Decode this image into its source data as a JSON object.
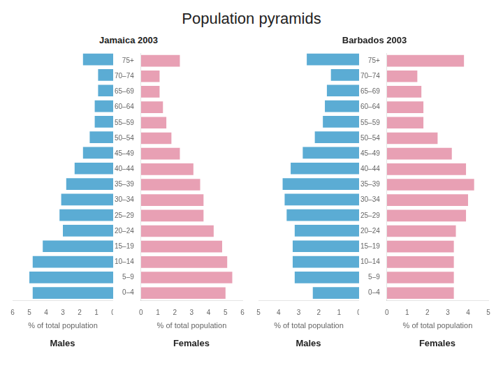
{
  "title": "Population pyramids",
  "chart_data": [
    {
      "type": "bar",
      "orientation": "horizontal",
      "title": "Jamaica 2003",
      "xlabel": "% of total population",
      "categories": [
        "0–4",
        "5–9",
        "10–14",
        "15–19",
        "20–24",
        "25–29",
        "30–34",
        "35–39",
        "40–44",
        "45–49",
        "50–54",
        "55–59",
        "60–64",
        "65–69",
        "70–74",
        "75+"
      ],
      "series": [
        {
          "name": "Males",
          "color": "#5bacd4",
          "values": [
            4.8,
            5.0,
            4.8,
            4.2,
            3.0,
            3.2,
            3.1,
            2.8,
            2.3,
            1.8,
            1.4,
            1.1,
            1.1,
            0.9,
            0.9,
            1.8
          ]
        },
        {
          "name": "Females",
          "color": "#e8a0b4",
          "values": [
            5.0,
            5.4,
            5.1,
            4.8,
            4.3,
            3.7,
            3.7,
            3.5,
            3.1,
            2.3,
            1.8,
            1.5,
            1.3,
            1.1,
            1.1,
            2.3
          ]
        }
      ],
      "xlim": [
        0,
        6
      ],
      "xticks": [
        0,
        1,
        2,
        3,
        4,
        5,
        6
      ],
      "grid": false
    },
    {
      "type": "bar",
      "orientation": "horizontal",
      "title": "Barbados 2003",
      "xlabel": "% of total population",
      "categories": [
        "0–4",
        "5–9",
        "10–14",
        "15–19",
        "20–24",
        "25–29",
        "30–34",
        "35–39",
        "40–44",
        "45–49",
        "50–54",
        "55–59",
        "60–64",
        "65–69",
        "70–74",
        "75+"
      ],
      "series": [
        {
          "name": "Males",
          "color": "#5bacd4",
          "values": [
            2.3,
            3.2,
            3.3,
            3.3,
            3.2,
            3.6,
            3.7,
            3.8,
            3.4,
            2.8,
            2.2,
            1.8,
            1.7,
            1.6,
            1.4,
            2.6
          ]
        },
        {
          "name": "Females",
          "color": "#e8a0b4",
          "values": [
            3.3,
            3.3,
            3.3,
            3.3,
            3.4,
            3.9,
            4.0,
            4.3,
            3.9,
            3.2,
            2.5,
            1.8,
            1.8,
            1.7,
            1.5,
            3.8
          ]
        }
      ],
      "xlim": [
        0,
        5
      ],
      "xticks": [
        0,
        1,
        2,
        3,
        4,
        5
      ],
      "grid": false
    }
  ]
}
